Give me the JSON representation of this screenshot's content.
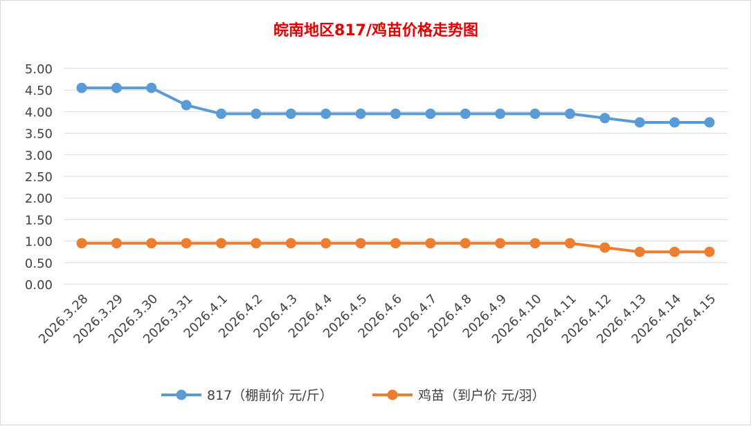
{
  "chart_data": {
    "type": "line",
    "title": "皖南地区817/鸡苗价格走势图",
    "x": [
      "2026.3.28",
      "2026.3.29",
      "2026.3.30",
      "2026.3.31",
      "2026.4.1",
      "2026.4.2",
      "2026.4.3",
      "2026.4.4",
      "2026.4.5",
      "2026.4.6",
      "2026.4.7",
      "2026.4.8",
      "2026.4.9",
      "2026.4.10",
      "2026.4.11",
      "2026.4.12",
      "2026.4.13",
      "2026.4.14",
      "2026.4.15"
    ],
    "yticks": [
      "0.00",
      "0.50",
      "1.00",
      "1.50",
      "2.00",
      "2.50",
      "3.00",
      "3.50",
      "4.00",
      "4.50",
      "5.00"
    ],
    "ylim": [
      0,
      5
    ],
    "grid": true,
    "legend": "bottom",
    "series": [
      {
        "name": "817（棚前价 元/斤）",
        "color": "#5b9bd5",
        "values": [
          4.55,
          4.55,
          4.55,
          4.15,
          3.95,
          3.95,
          3.95,
          3.95,
          3.95,
          3.95,
          3.95,
          3.95,
          3.95,
          3.95,
          3.95,
          3.85,
          3.75,
          3.75,
          3.75
        ]
      },
      {
        "name": "鸡苗（到户价 元/羽）",
        "color": "#ed7d31",
        "values": [
          0.95,
          0.95,
          0.95,
          0.95,
          0.95,
          0.95,
          0.95,
          0.95,
          0.95,
          0.95,
          0.95,
          0.95,
          0.95,
          0.95,
          0.95,
          0.85,
          0.75,
          0.75,
          0.75
        ]
      }
    ]
  }
}
